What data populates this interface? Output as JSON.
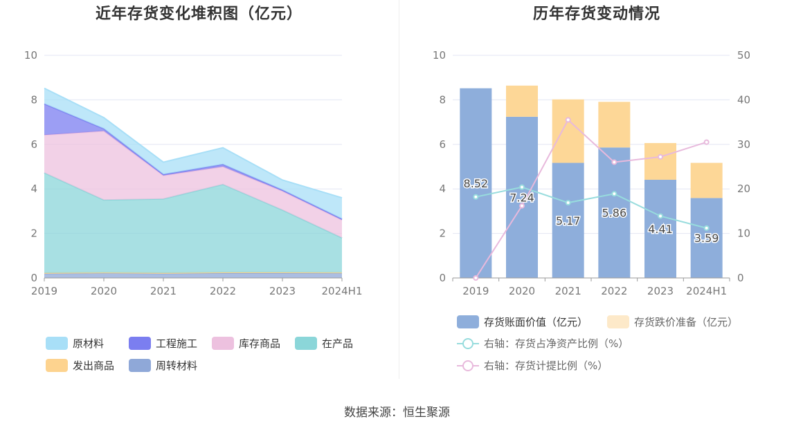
{
  "source_label": "数据来源：恒生聚源",
  "chart_data": [
    {
      "type": "area",
      "stacked": true,
      "title": "近年存货变化堆积图（亿元）",
      "categories": [
        "2019",
        "2020",
        "2021",
        "2022",
        "2023",
        "2024H1"
      ],
      "ylim": [
        0,
        10
      ],
      "yticks": [
        0,
        2,
        4,
        6,
        8,
        10
      ],
      "grid": true,
      "legend_position": "bottom",
      "series": [
        {
          "name": "周转材料",
          "color": "#8fa8d8",
          "values": [
            0.2,
            0.22,
            0.2,
            0.22,
            0.22,
            0.22
          ]
        },
        {
          "name": "发出商品",
          "color": "#fdd38f",
          "values": [
            0.02,
            0.02,
            0.02,
            0.03,
            0.03,
            0.02
          ]
        },
        {
          "name": "在产品",
          "color": "#8bd6d9",
          "values": [
            4.5,
            3.26,
            3.33,
            3.95,
            2.8,
            1.56
          ]
        },
        {
          "name": "库存商品",
          "color": "#edc1df",
          "values": [
            1.7,
            3.1,
            1.05,
            0.8,
            0.85,
            0.8
          ]
        },
        {
          "name": "工程施工",
          "color": "#7b7ef0",
          "values": [
            1.4,
            0.1,
            0.05,
            0.1,
            0.05,
            0.05
          ]
        },
        {
          "name": "原材料",
          "color": "#a8dff7",
          "values": [
            0.7,
            0.5,
            0.55,
            0.75,
            0.45,
            0.95
          ]
        }
      ],
      "legend_order": [
        "原材料",
        "工程施工",
        "库存商品",
        "在产品",
        "发出商品",
        "周转材料"
      ]
    },
    {
      "type": "bar",
      "stacked": true,
      "title": "历年存货变动情况",
      "categories": [
        "2019",
        "2020",
        "2021",
        "2022",
        "2023",
        "2024H1"
      ],
      "ylim": [
        0,
        10
      ],
      "yticks": [
        0,
        2,
        4,
        6,
        8,
        10
      ],
      "y2lim": [
        0,
        50
      ],
      "y2ticks": [
        0,
        10,
        20,
        30,
        40,
        50
      ],
      "grid": true,
      "legend_position": "bottom",
      "series": [
        {
          "name": "存货账面价值（亿元）",
          "axis": "left",
          "color": "#8eaedb",
          "values": [
            8.52,
            7.24,
            5.17,
            5.86,
            4.41,
            3.59
          ],
          "labels": [
            "8.52",
            "7.24",
            "5.17",
            "5.86",
            "4.41",
            "3.59"
          ]
        },
        {
          "name": "存货跌价准备（亿元）",
          "axis": "left",
          "color": "#fdd797",
          "legend_color": "#fde9c9",
          "values": [
            0,
            1.4,
            2.85,
            2.05,
            1.65,
            1.58
          ]
        },
        {
          "name": "右轴：存货占净资产比例（%）",
          "type": "line",
          "axis": "right",
          "color": "#97dcdd",
          "values": [
            18.2,
            20.4,
            16.9,
            18.9,
            13.9,
            11.2
          ]
        },
        {
          "name": "右轴：存货计提比例（%）",
          "type": "line",
          "axis": "right",
          "color": "#e8b9dc",
          "values": [
            0,
            16.2,
            35.5,
            26.0,
            27.2,
            30.5
          ]
        }
      ]
    }
  ]
}
